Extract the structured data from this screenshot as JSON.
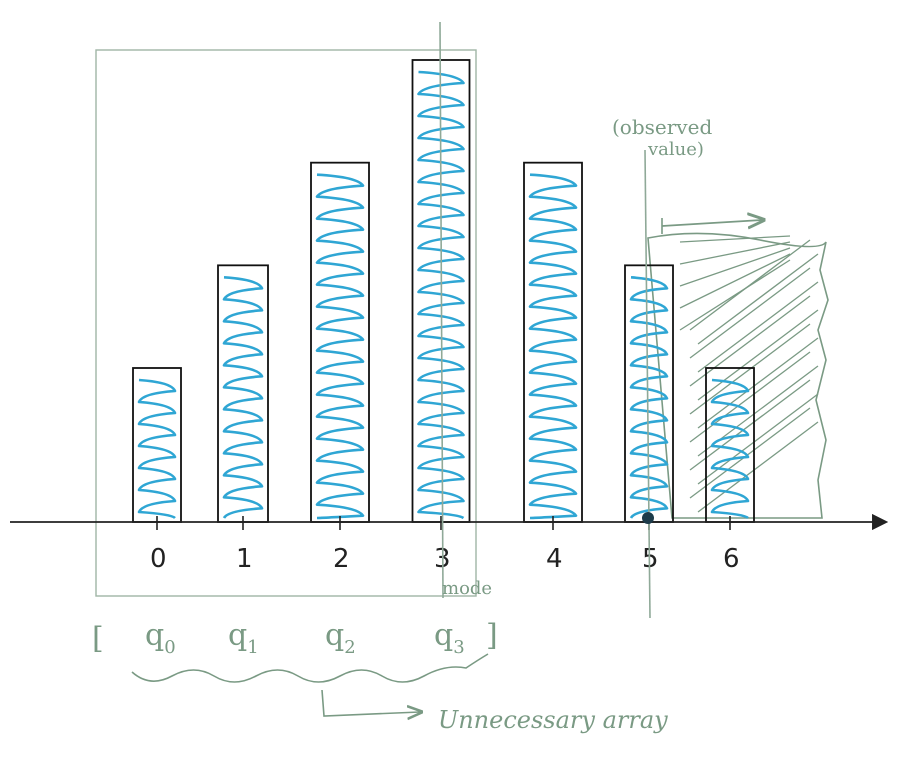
{
  "chart_data": {
    "type": "bar",
    "categories": [
      "0",
      "1",
      "2",
      "3",
      "4",
      "5",
      "6"
    ],
    "values": [
      3,
      5,
      7,
      9,
      7,
      5,
      3
    ],
    "ylim": [
      0,
      10
    ],
    "xlabel": "",
    "ylabel": "",
    "title": "",
    "bar_fill_color": "#2fa6d4",
    "bar_outline_color": "#111111",
    "annotation_color": "#7a9a84",
    "grid": false,
    "observed_value_at": "5",
    "mode_at": "3"
  },
  "annotations": {
    "mode_label": "mode",
    "observed_label_line1": "(observed",
    "observed_label_line2": "value)",
    "array_bracket_open": "[",
    "array_bracket_close": "]",
    "array_items": [
      {
        "base": "q",
        "sub": "0"
      },
      {
        "base": "q",
        "sub": "1"
      },
      {
        "base": "q",
        "sub": "2"
      },
      {
        "base": "q",
        "sub": "3"
      }
    ],
    "array_caption": "Unnecessary array"
  }
}
